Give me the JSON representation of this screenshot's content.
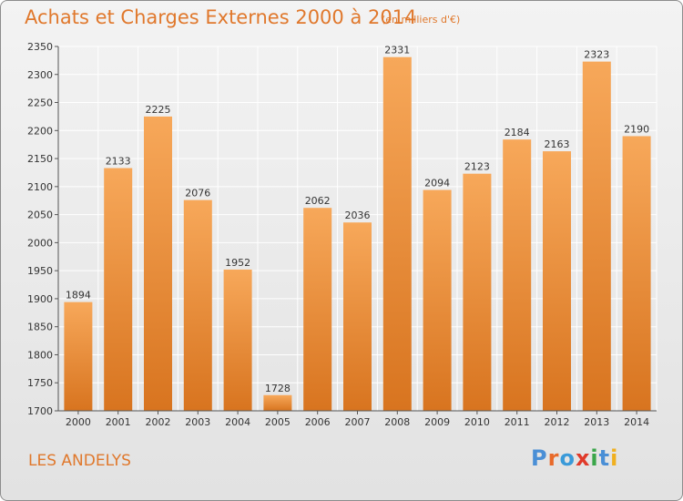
{
  "title": "Achats et Charges Externes 2000 à 2014",
  "subtitle": "(en milliers d'€)",
  "location": "LES ANDELYS",
  "logo": {
    "text": "Proxiti",
    "colors": [
      "#4a8fd6",
      "#e86a2a",
      "#3a9ad9",
      "#e03a2a",
      "#3aa64a",
      "#4a8fd6",
      "#f0b020"
    ]
  },
  "colors": {
    "accent": "#e0782c",
    "bar_top": "#f7a85a",
    "bar_bottom": "#d8741f",
    "grid": "#ffffff"
  },
  "chart_data": {
    "type": "bar",
    "categories": [
      "2000",
      "2001",
      "2002",
      "2003",
      "2004",
      "2005",
      "2006",
      "2007",
      "2008",
      "2009",
      "2010",
      "2011",
      "2012",
      "2013",
      "2014"
    ],
    "values": [
      1894,
      2133,
      2225,
      2076,
      1952,
      1728,
      2062,
      2036,
      2331,
      2094,
      2123,
      2184,
      2163,
      2323,
      2190
    ],
    "ylim": [
      1700,
      2350
    ],
    "yticks": [
      1700,
      1750,
      1800,
      1850,
      1900,
      1950,
      2000,
      2050,
      2100,
      2150,
      2200,
      2250,
      2300,
      2350
    ],
    "grid": true,
    "data_labels": true
  }
}
